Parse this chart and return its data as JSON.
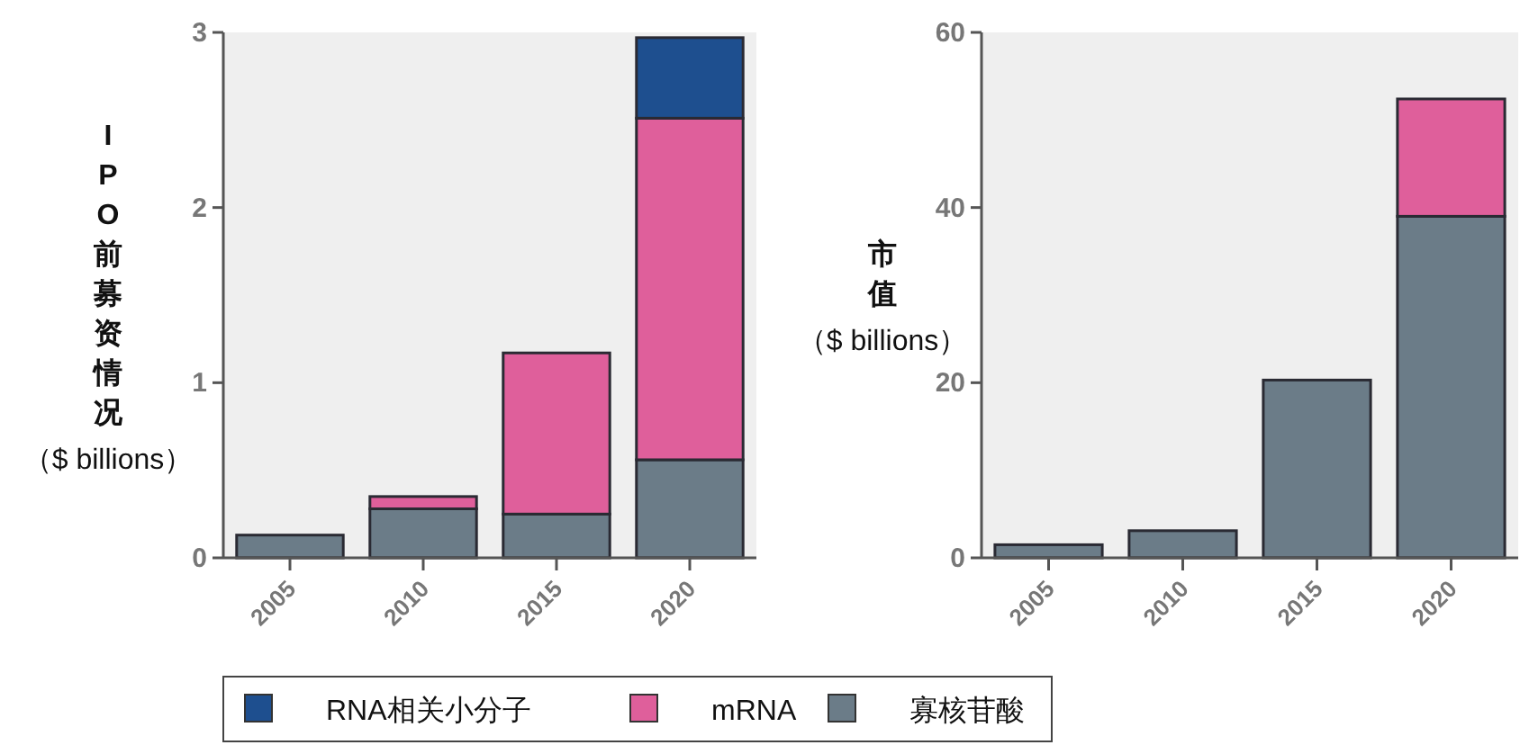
{
  "chart_data": [
    {
      "type": "bar",
      "stacked": true,
      "ylabel": "IPO前募资情况（$ billions）",
      "categories": [
        "2005",
        "2010",
        "2015",
        "2020"
      ],
      "ylim": [
        0,
        3
      ],
      "yticks": [
        0,
        1,
        2,
        3
      ],
      "grid": false,
      "legend": "bottom",
      "series": [
        {
          "name": "寡核苷酸",
          "color": "#6b7c88",
          "values": [
            0.13,
            0.28,
            0.25,
            0.56
          ]
        },
        {
          "name": "mRNA",
          "color": "#df5f9b",
          "values": [
            null,
            0.07,
            0.92,
            1.95
          ]
        },
        {
          "name": "RNA相关小分子",
          "color": "#1e4f8f",
          "values": [
            null,
            null,
            null,
            0.46
          ]
        }
      ]
    },
    {
      "type": "bar",
      "stacked": true,
      "ylabel": "市值（$ billions）",
      "categories": [
        "2005",
        "2010",
        "2015",
        "2020"
      ],
      "ylim": [
        0,
        60
      ],
      "yticks": [
        0,
        20,
        40,
        60
      ],
      "grid": false,
      "legend": "bottom",
      "series": [
        {
          "name": "寡核苷酸",
          "color": "#6b7c88",
          "values": [
            1.5,
            3.1,
            20.3,
            39.0
          ]
        },
        {
          "name": "mRNA",
          "color": "#df5f9b",
          "values": [
            null,
            null,
            null,
            13.4
          ]
        }
      ]
    }
  ]
}
